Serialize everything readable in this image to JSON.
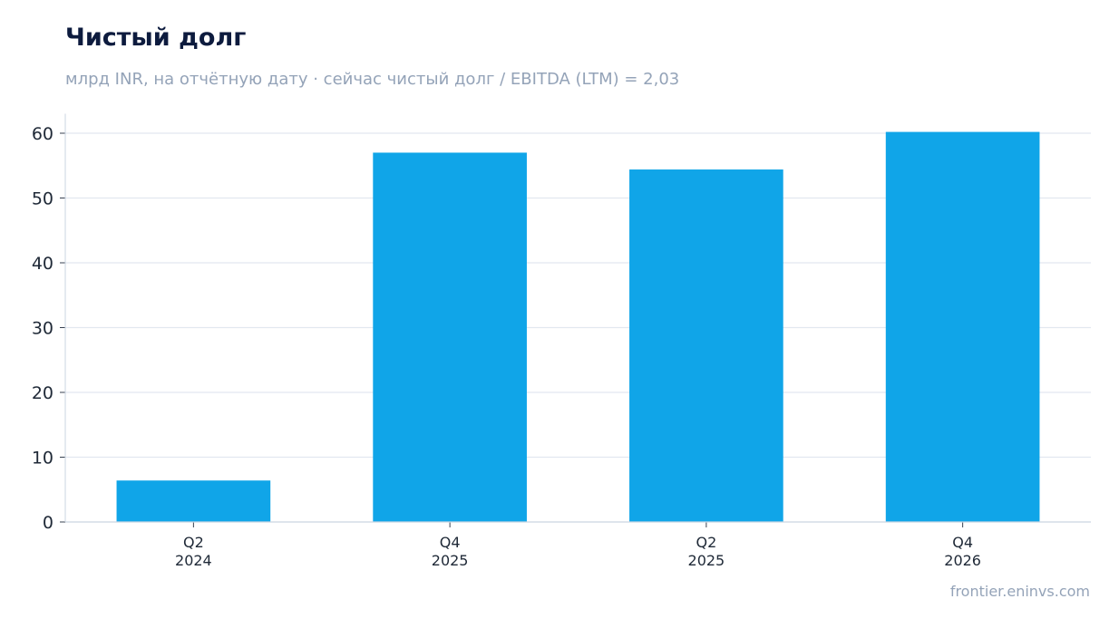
{
  "chart_data": {
    "type": "bar",
    "title": "Чистый долг",
    "subtitle": "млрд INR, на отчётную дату · сейчас чистый долг / EBITDA (LTM) = 2,03",
    "categories": [
      [
        "Q2",
        "2024"
      ],
      [
        "Q4",
        "2025"
      ],
      [
        "Q2",
        "2025"
      ],
      [
        "Q4",
        "2026"
      ]
    ],
    "values": [
      6.4,
      57.0,
      54.4,
      60.2
    ],
    "ylim": [
      0,
      63
    ],
    "yticks": [
      0,
      10,
      20,
      30,
      40,
      50,
      60
    ],
    "grid": true,
    "bar_color": "#10a5e8",
    "xlabel": "",
    "ylabel": ""
  },
  "source": "frontier.eninvs.com"
}
